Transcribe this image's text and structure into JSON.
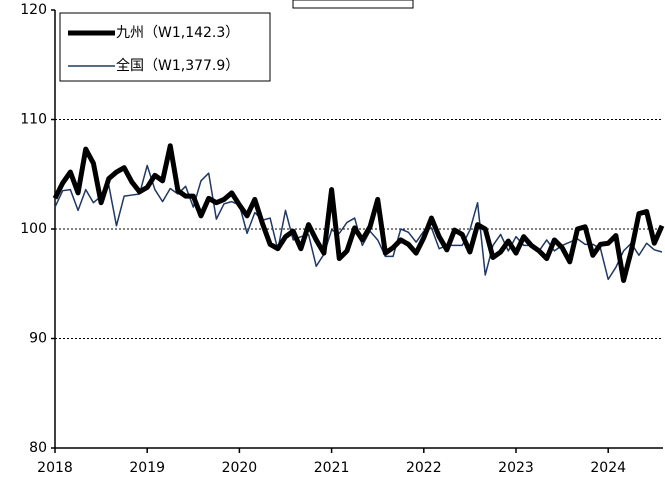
{
  "chart_data": {
    "type": "line",
    "categories": [
      "2018",
      null,
      null,
      null,
      null,
      null,
      null,
      null,
      null,
      null,
      null,
      null,
      "2019",
      null,
      null,
      null,
      null,
      null,
      null,
      null,
      null,
      null,
      null,
      null,
      "2020",
      null,
      null,
      null,
      null,
      null,
      null,
      null,
      null,
      null,
      null,
      null,
      "2021",
      null,
      null,
      null,
      null,
      null,
      null,
      null,
      null,
      null,
      null,
      null,
      "2022",
      null,
      null,
      null,
      null,
      null,
      null,
      null,
      null,
      null,
      null,
      null,
      "2023",
      null,
      null,
      null,
      null,
      null,
      null,
      null,
      null,
      null,
      null,
      null,
      "2024",
      null,
      null,
      null,
      null,
      null,
      null,
      null
    ],
    "series": [
      {
        "name": "九州（W1,142.3）",
        "color": "#000000",
        "values": [
          102.8,
          104.2,
          105.2,
          103.3,
          107.3,
          106.0,
          102.4,
          104.6,
          105.2,
          105.6,
          104.3,
          103.4,
          103.8,
          104.9,
          104.4,
          107.6,
          103.5,
          103.0,
          103.0,
          101.2,
          102.8,
          102.4,
          102.7,
          103.3,
          102.2,
          101.2,
          102.7,
          100.5,
          98.6,
          98.2,
          99.3,
          99.8,
          98.2,
          100.4,
          99.0,
          97.8,
          103.6,
          97.3,
          98.0,
          100.1,
          99.0,
          100.2,
          102.7,
          97.8,
          98.3,
          99.0,
          98.6,
          97.8,
          99.2,
          101.0,
          99.3,
          98.1,
          99.9,
          99.5,
          97.9,
          100.4,
          100.0,
          97.4,
          97.9,
          98.9,
          97.8,
          99.3,
          98.5,
          98.0,
          97.3,
          99.0,
          98.3,
          97.0,
          100.0,
          100.2,
          97.6,
          98.6,
          98.7,
          99.4,
          95.3,
          98.0,
          101.4,
          101.6,
          98.7,
          100.3
        ]
      },
      {
        "name": "全国（W1,377.9）",
        "color": "#1f3864",
        "values": [
          102.0,
          103.5,
          103.6,
          101.7,
          103.6,
          102.4,
          103.0,
          104.0,
          100.3,
          103.0,
          103.1,
          103.2,
          105.8,
          103.6,
          102.5,
          103.7,
          103.2,
          103.9,
          102.0,
          104.4,
          105.1,
          100.9,
          102.3,
          102.5,
          102.2,
          99.6,
          101.5,
          100.8,
          101.0,
          98.1,
          101.7,
          99.0,
          99.3,
          99.5,
          96.6,
          97.7,
          99.9,
          99.6,
          100.6,
          101.0,
          98.5,
          99.8,
          99.0,
          97.5,
          97.5,
          100.0,
          99.7,
          98.8,
          99.8,
          100.1,
          98.2,
          98.5,
          98.5,
          98.5,
          99.9,
          102.4,
          95.8,
          98.5,
          99.5,
          98.0,
          99.3,
          98.5,
          98.5,
          98.0,
          99.0,
          98.0,
          98.5,
          98.8,
          99.1,
          98.6,
          98.6,
          98.2,
          95.4,
          96.5,
          98.0,
          98.7,
          97.6,
          98.7,
          98.1,
          97.9
        ]
      }
    ],
    "ylim": [
      80,
      120
    ],
    "yticks": [
      80,
      90,
      100,
      110,
      120
    ],
    "grid": true,
    "legend": "upper left"
  }
}
